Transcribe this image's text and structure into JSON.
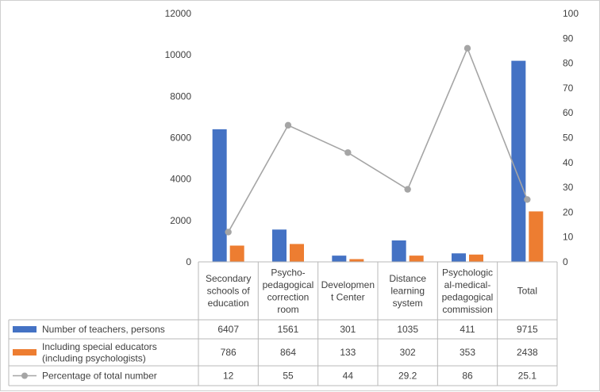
{
  "chart_data": {
    "type": "bar",
    "categories": [
      "Secondary schools of education",
      "Psycho-pedagogical correction room",
      "Development Center",
      "Distance learning system",
      "Psychological-medical-pedagogical commission",
      "Total"
    ],
    "category_lines": [
      [
        "Secondary",
        "schools of",
        "education"
      ],
      [
        "Psycho-",
        "pedagogical",
        "correction",
        "room"
      ],
      [
        "Developmen",
        "t Center"
      ],
      [
        "Distance",
        "learning",
        "system"
      ],
      [
        "Psychologic",
        "al-medical-",
        "pedagogical",
        "commission"
      ],
      [
        "Total"
      ]
    ],
    "series": [
      {
        "name": "Number of teachers, persons",
        "name_lines": [
          "Number of teachers, persons"
        ],
        "type": "bar",
        "axis": "left",
        "color": "#4472c4",
        "values": [
          6407,
          1561,
          301,
          1035,
          411,
          9715
        ],
        "labels": [
          "6407",
          "1561",
          "301",
          "1035",
          "411",
          "9715"
        ]
      },
      {
        "name": "Including special educators (including psychologists)",
        "name_lines": [
          "Including special educators",
          "(including psychologists)"
        ],
        "type": "bar",
        "axis": "left",
        "color": "#ed7d31",
        "values": [
          786,
          864,
          133,
          302,
          353,
          2438
        ],
        "labels": [
          "786",
          "864",
          "133",
          "302",
          "353",
          "2438"
        ]
      },
      {
        "name": "Percentage of total number",
        "name_lines": [
          "Percentage of total number"
        ],
        "type": "line",
        "axis": "right",
        "color": "#a5a5a5",
        "values": [
          12,
          55,
          44,
          29.2,
          86,
          25.1
        ],
        "labels": [
          "12",
          "55",
          "44",
          "29.2",
          "86",
          "25.1"
        ]
      }
    ],
    "y_left": {
      "min": 0,
      "max": 12000,
      "step": 2000,
      "ticks": [
        "0",
        "2000",
        "4000",
        "6000",
        "8000",
        "10000",
        "12000"
      ]
    },
    "y_right": {
      "min": 0,
      "max": 100,
      "step": 10,
      "ticks": [
        "0",
        "10",
        "20",
        "30",
        "40",
        "50",
        "60",
        "70",
        "80",
        "90",
        "100"
      ]
    },
    "title": "",
    "xlabel": "",
    "ylabel": "",
    "grid": false,
    "legend": "data-table"
  }
}
